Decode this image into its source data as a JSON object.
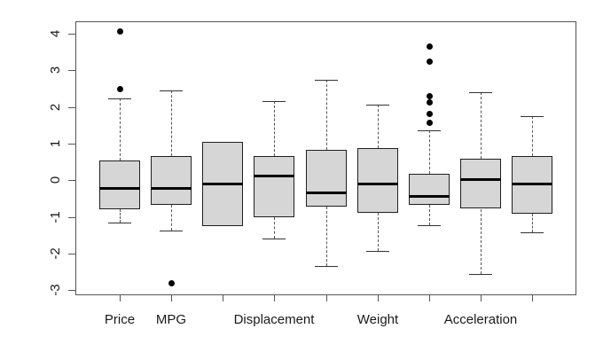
{
  "figure": {
    "title": "",
    "background_color": "#ffffff",
    "frame_color": "#555555",
    "box_fill_color": "#d6d6d6",
    "box_border_color": "#1f1f1f",
    "median_color": "#000000",
    "outlier_color": "#000000",
    "tick_label_color": "#1a1a1a"
  },
  "chart_data": {
    "type": "boxplot",
    "title": "",
    "xlabel": "",
    "ylabel": "",
    "grid": false,
    "legend_position": "none",
    "ylim": [
      -3.14,
      4.34
    ],
    "yticks": [
      -3,
      -2,
      -1,
      0,
      1,
      2,
      3,
      4
    ],
    "categories": [
      "Price",
      "MPG",
      "",
      "Displacement",
      "",
      "Weight",
      "",
      "Acceleration",
      ""
    ],
    "series": [
      {
        "label": "Price",
        "whisker_low": -1.15,
        "q1": -0.8,
        "median": -0.23,
        "q3": 0.53,
        "whisker_high": 2.23,
        "outliers": [
          2.5,
          4.05
        ]
      },
      {
        "label": "MPG",
        "whisker_low": -1.38,
        "q1": -0.68,
        "median": -0.23,
        "q3": 0.65,
        "whisker_high": 2.44,
        "outliers": [
          -2.81
        ]
      },
      {
        "label": "",
        "whisker_low": -1.24,
        "q1": -1.24,
        "median": -0.11,
        "q3": 1.05,
        "whisker_high": 1.05,
        "outliers": []
      },
      {
        "label": "Displacement",
        "whisker_low": -1.6,
        "q1": -1.0,
        "median": 0.11,
        "q3": 0.65,
        "whisker_high": 2.16,
        "outliers": []
      },
      {
        "label": "",
        "whisker_low": -2.35,
        "q1": -0.72,
        "median": -0.34,
        "q3": 0.83,
        "whisker_high": 2.75,
        "outliers": []
      },
      {
        "label": "Weight",
        "whisker_low": -1.93,
        "q1": -0.9,
        "median": -0.09,
        "q3": 0.87,
        "whisker_high": 2.07,
        "outliers": []
      },
      {
        "label": "",
        "whisker_low": -1.22,
        "q1": -0.68,
        "median": -0.44,
        "q3": 0.17,
        "whisker_high": 1.36,
        "outliers": [
          1.58,
          1.8,
          2.12,
          2.29,
          3.23,
          3.65
        ]
      },
      {
        "label": "Acceleration",
        "whisker_low": -2.55,
        "q1": -0.78,
        "median": 0.02,
        "q3": 0.58,
        "whisker_high": 2.4,
        "outliers": []
      },
      {
        "label": "",
        "whisker_low": -1.43,
        "q1": -0.92,
        "median": -0.1,
        "q3": 0.67,
        "whisker_high": 1.76,
        "outliers": []
      }
    ]
  }
}
